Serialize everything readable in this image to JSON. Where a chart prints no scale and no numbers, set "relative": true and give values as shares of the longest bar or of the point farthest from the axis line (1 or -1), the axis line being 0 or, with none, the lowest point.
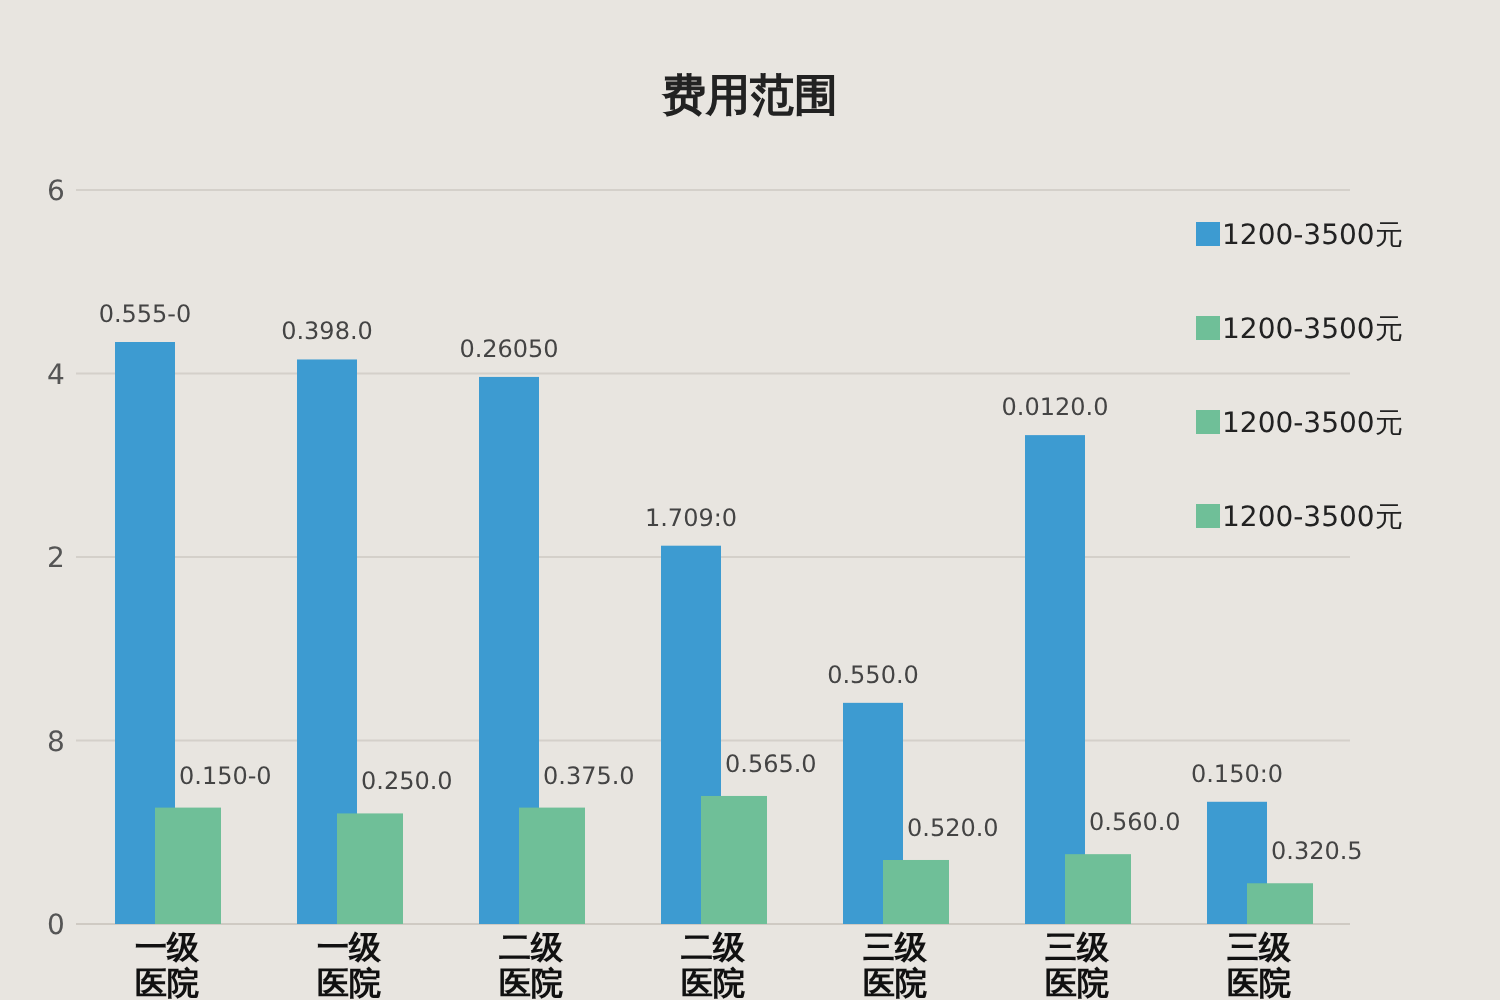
{
  "chart_data": {
    "type": "bar",
    "title": "费用范围",
    "relative": true,
    "categories": [
      "一级医院",
      "一级医院",
      "二级医院",
      "二级医院",
      "三级医院",
      "三级医院",
      "三级医院"
    ],
    "series": [
      {
        "name": "1200-3500元",
        "color": "#3d9bd1",
        "values": [
          1,
          0.97,
          0.94,
          0.65,
          0.38,
          0.84,
          0.21
        ]
      },
      {
        "name": "1200-3500元",
        "color": "#6fbf98",
        "values": [
          0.2,
          0.19,
          0.2,
          0.22,
          0.11,
          0.12,
          0.07
        ]
      },
      {
        "name": "1200-3500元",
        "color": "#6fbf98",
        "values": [
          null,
          null,
          null,
          null,
          null,
          null,
          null
        ]
      },
      {
        "name": "1200-3500元",
        "color": "#6fbf98",
        "values": [
          null,
          null,
          null,
          null,
          null,
          null,
          null
        ]
      }
    ],
    "annotations": [
      "6",
      "4",
      "2",
      "8",
      "0",
      "0.555-0",
      "0.398.0",
      "0.26050",
      "1.709:0",
      "0.550.0",
      "0.0120.0",
      "0.150:0",
      "0.150-0",
      "0.250.0",
      "0.375.0",
      "0.565.0",
      "0.520.0",
      "0.560.0",
      "0.320.5"
    ],
    "grid": "y",
    "legend": "right"
  }
}
